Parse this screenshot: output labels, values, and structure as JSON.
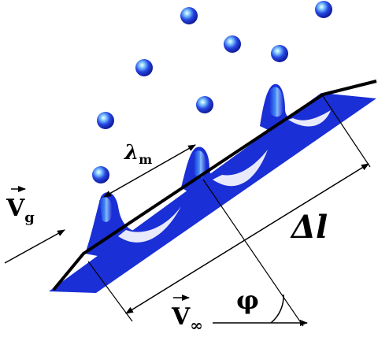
{
  "diagram": {
    "labels": {
      "wavelength_symbol": "λ",
      "wavelength_subscript": "m",
      "gas_velocity_symbol": "V",
      "gas_velocity_subscript": "g",
      "length_symbol": "Δl",
      "freestream_velocity_symbol": "V",
      "freestream_velocity_subscript": "∞",
      "angle_symbol": "φ"
    },
    "colors": {
      "film": "#1a2fd6",
      "film_highlight": "#6fb4ff",
      "droplet": "#1a2fd6",
      "lines": "#000000",
      "background": "#ffffff"
    }
  }
}
